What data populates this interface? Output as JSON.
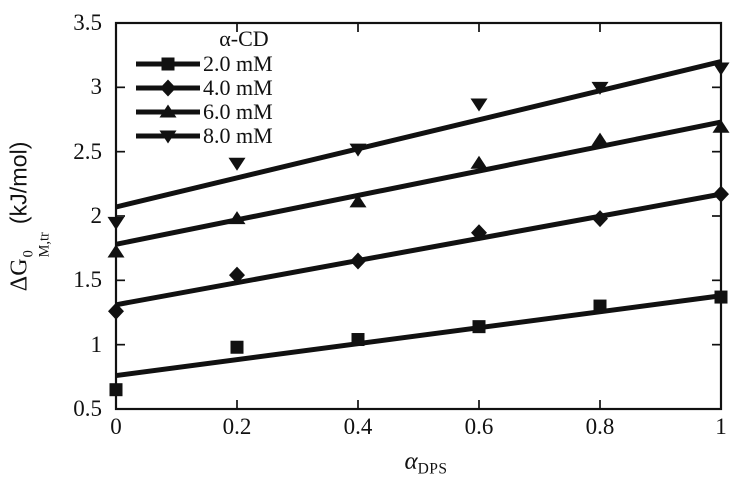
{
  "colors": {
    "foreground": "#111111",
    "background": "#ffffff"
  },
  "chart_data": {
    "type": "scatter",
    "description": "Scatter plot of Gibbs energy of micellization transfer vs mole fraction of DPS at four alpha-cyclodextrin concentrations, each series with a linear fit line",
    "x": [
      0,
      0.2,
      0.4,
      0.6,
      0.8,
      1
    ],
    "series": [
      {
        "name": "2.0 mM",
        "marker": "square",
        "values": [
          0.65,
          0.98,
          1.04,
          1.14,
          1.3,
          1.37
        ],
        "fit_line": {
          "start": 0.76,
          "end": 1.38
        }
      },
      {
        "name": "4.0 mM",
        "marker": "diamond",
        "values": [
          1.26,
          1.54,
          1.65,
          1.87,
          1.98,
          2.17
        ],
        "fit_line": {
          "start": 1.31,
          "end": 2.17
        }
      },
      {
        "name": "6.0 mM",
        "marker": "triangle-up",
        "values": [
          1.72,
          1.98,
          2.11,
          2.41,
          2.59,
          2.69
        ],
        "fit_line": {
          "start": 1.78,
          "end": 2.73
        }
      },
      {
        "name": "8.0 mM",
        "marker": "triangle-down",
        "values": [
          1.95,
          2.41,
          2.52,
          2.87,
          3.0,
          3.15
        ],
        "fit_line": {
          "start": 2.07,
          "end": 3.2
        }
      }
    ],
    "legend": {
      "title": "α-CD",
      "position": "top-left"
    },
    "xlabel": {
      "main": "α",
      "sub": "DPS"
    },
    "ylabel": {
      "delta_g": "ΔG",
      "sup": "0",
      "sub": "M,tr",
      "unit": "(kJ/mol)"
    },
    "xlim": [
      0,
      1
    ],
    "ylim": [
      0.5,
      3.5
    ],
    "xticks": [
      {
        "value": 0,
        "label": "0"
      },
      {
        "value": 0.2,
        "label": "0.2"
      },
      {
        "value": 0.4,
        "label": "0.4"
      },
      {
        "value": 0.6,
        "label": "0.6"
      },
      {
        "value": 0.8,
        "label": "0.8"
      },
      {
        "value": 1,
        "label": "1"
      }
    ],
    "yticks": [
      {
        "value": 0.5,
        "label": "0.5"
      },
      {
        "value": 1,
        "label": "1"
      },
      {
        "value": 1.5,
        "label": "1.5"
      },
      {
        "value": 2,
        "label": "2"
      },
      {
        "value": 2.5,
        "label": "2.5"
      },
      {
        "value": 3,
        "label": "3"
      },
      {
        "value": 3.5,
        "label": "3.5"
      }
    ],
    "grid": false
  }
}
